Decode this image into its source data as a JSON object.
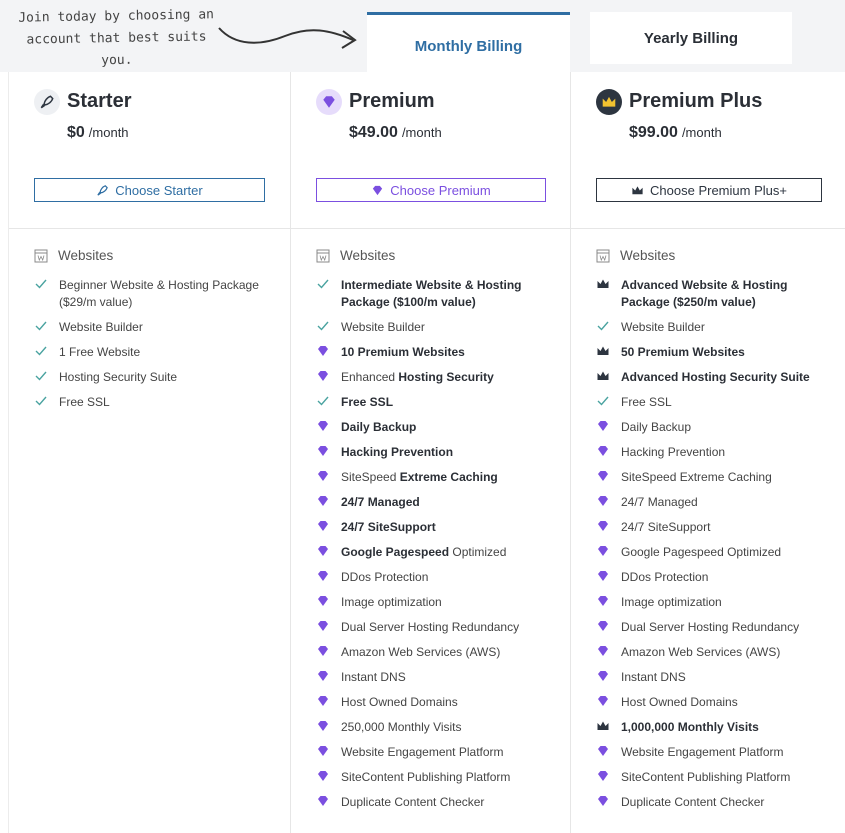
{
  "note": "Join today by choosing an account that best suits you.",
  "tabs": [
    {
      "label": "Monthly Billing",
      "active": true
    },
    {
      "label": "Yearly Billing",
      "active": false
    }
  ],
  "plans": [
    {
      "name": "Starter",
      "icon": "rocket",
      "price": "$0",
      "period": "/month",
      "button": "Choose Starter",
      "button_color": "#2f6ea3",
      "section": "Websites",
      "features": [
        {
          "icon": "check",
          "parts": [
            {
              "text": "Beginner Website & Hosting Package ($29/m value)"
            }
          ]
        },
        {
          "icon": "check",
          "parts": [
            {
              "text": "Website Builder"
            }
          ]
        },
        {
          "icon": "check",
          "parts": [
            {
              "text": "1 Free Website"
            }
          ]
        },
        {
          "icon": "check",
          "parts": [
            {
              "text": "Hosting Security Suite"
            }
          ]
        },
        {
          "icon": "check",
          "parts": [
            {
              "text": "Free SSL"
            }
          ]
        }
      ]
    },
    {
      "name": "Premium",
      "icon": "diamond",
      "price": "$49.00",
      "period": "/month",
      "button": "Choose Premium",
      "button_color": "#7b4fe0",
      "section": "Websites",
      "features": [
        {
          "icon": "check",
          "parts": [
            {
              "text": "Intermediate Website & Hosting Package ($100/m value)",
              "bold": true
            }
          ]
        },
        {
          "icon": "check",
          "parts": [
            {
              "text": "Website Builder"
            }
          ]
        },
        {
          "icon": "diamond",
          "parts": [
            {
              "text": "10 Premium Websites",
              "bold": true
            }
          ]
        },
        {
          "icon": "diamond",
          "parts": [
            {
              "text": "Enhanced "
            },
            {
              "text": "Hosting Security",
              "bold": true
            }
          ]
        },
        {
          "icon": "check",
          "parts": [
            {
              "text": "Free SSL",
              "bold": true
            }
          ]
        },
        {
          "icon": "diamond",
          "parts": [
            {
              "text": "Daily Backup",
              "bold": true
            }
          ]
        },
        {
          "icon": "diamond",
          "parts": [
            {
              "text": "Hacking Prevention",
              "bold": true
            }
          ]
        },
        {
          "icon": "diamond",
          "parts": [
            {
              "text": "SiteSpeed "
            },
            {
              "text": "Extreme Caching",
              "bold": true
            }
          ]
        },
        {
          "icon": "diamond",
          "parts": [
            {
              "text": "24/7 Managed",
              "bold": true
            }
          ]
        },
        {
          "icon": "diamond",
          "parts": [
            {
              "text": "24/7 SiteSupport",
              "bold": true
            }
          ]
        },
        {
          "icon": "diamond",
          "parts": [
            {
              "text": "Google Pagespeed",
              "bold": true
            },
            {
              "text": " Optimized"
            }
          ]
        },
        {
          "icon": "diamond",
          "parts": [
            {
              "text": "DDos Protection"
            }
          ]
        },
        {
          "icon": "diamond",
          "parts": [
            {
              "text": "Image optimization"
            }
          ]
        },
        {
          "icon": "diamond",
          "parts": [
            {
              "text": "Dual Server Hosting Redundancy"
            }
          ]
        },
        {
          "icon": "diamond",
          "parts": [
            {
              "text": "Amazon Web Services (AWS)"
            }
          ]
        },
        {
          "icon": "diamond",
          "parts": [
            {
              "text": "Instant DNS"
            }
          ]
        },
        {
          "icon": "diamond",
          "parts": [
            {
              "text": "Host Owned Domains"
            }
          ]
        },
        {
          "icon": "diamond",
          "parts": [
            {
              "text": "250,000 Monthly Visits"
            }
          ]
        },
        {
          "icon": "diamond",
          "parts": [
            {
              "text": "Website Engagement Platform"
            }
          ]
        },
        {
          "icon": "diamond",
          "parts": [
            {
              "text": "SiteContent Publishing Platform"
            }
          ]
        },
        {
          "icon": "diamond",
          "parts": [
            {
              "text": "Duplicate Content Checker"
            }
          ]
        }
      ]
    },
    {
      "name": "Premium Plus",
      "icon": "crown",
      "price": "$99.00",
      "period": "/month",
      "button": "Choose Premium Plus+",
      "button_color": "#2d3540",
      "section": "Websites",
      "features": [
        {
          "icon": "crown",
          "parts": [
            {
              "text": "Advanced Website & Hosting Package ($250/m value)",
              "bold": true
            }
          ]
        },
        {
          "icon": "check",
          "parts": [
            {
              "text": "Website Builder"
            }
          ]
        },
        {
          "icon": "crown",
          "parts": [
            {
              "text": "50 Premium Websites",
              "bold": true
            }
          ]
        },
        {
          "icon": "crown",
          "parts": [
            {
              "text": "Advanced Hosting Security Suite",
              "bold": true
            }
          ]
        },
        {
          "icon": "check",
          "parts": [
            {
              "text": "Free SSL"
            }
          ]
        },
        {
          "icon": "diamond",
          "parts": [
            {
              "text": "Daily Backup"
            }
          ]
        },
        {
          "icon": "diamond",
          "parts": [
            {
              "text": "Hacking Prevention"
            }
          ]
        },
        {
          "icon": "diamond",
          "parts": [
            {
              "text": "SiteSpeed Extreme Caching"
            }
          ]
        },
        {
          "icon": "diamond",
          "parts": [
            {
              "text": "24/7 Managed"
            }
          ]
        },
        {
          "icon": "diamond",
          "parts": [
            {
              "text": "24/7 SiteSupport"
            }
          ]
        },
        {
          "icon": "diamond",
          "parts": [
            {
              "text": "Google Pagespeed Optimized"
            }
          ]
        },
        {
          "icon": "diamond",
          "parts": [
            {
              "text": "DDos Protection"
            }
          ]
        },
        {
          "icon": "diamond",
          "parts": [
            {
              "text": "Image optimization"
            }
          ]
        },
        {
          "icon": "diamond",
          "parts": [
            {
              "text": "Dual Server Hosting Redundancy"
            }
          ]
        },
        {
          "icon": "diamond",
          "parts": [
            {
              "text": "Amazon Web Services (AWS)"
            }
          ]
        },
        {
          "icon": "diamond",
          "parts": [
            {
              "text": "Instant DNS"
            }
          ]
        },
        {
          "icon": "diamond",
          "parts": [
            {
              "text": "Host Owned Domains"
            }
          ]
        },
        {
          "icon": "crown",
          "parts": [
            {
              "text": "1,000,000 Monthly Visits",
              "bold": true
            }
          ]
        },
        {
          "icon": "diamond",
          "parts": [
            {
              "text": "Website Engagement Platform"
            }
          ]
        },
        {
          "icon": "diamond",
          "parts": [
            {
              "text": "SiteContent Publishing Platform"
            }
          ]
        },
        {
          "icon": "diamond",
          "parts": [
            {
              "text": "Duplicate Content Checker"
            }
          ]
        }
      ]
    }
  ]
}
